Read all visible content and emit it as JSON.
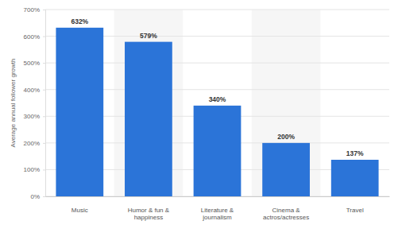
{
  "chart_data": {
    "type": "bar",
    "categories": [
      "Music",
      "Humor & fun & happiness",
      "Literature & journalism",
      "Cinema & actros/actresses",
      "Travel"
    ],
    "values": [
      632,
      579,
      340,
      200,
      137
    ],
    "value_labels": [
      "632%",
      "579%",
      "340%",
      "200%",
      "137%"
    ],
    "color": "#2b74d8",
    "ylabel": "Average annual follower growth",
    "ylim": [
      0,
      700
    ],
    "yticks": [
      {
        "value": 0,
        "label": "0%"
      },
      {
        "value": 100,
        "label": "100%"
      },
      {
        "value": 200,
        "label": "200%"
      },
      {
        "value": 300,
        "label": "300%"
      },
      {
        "value": 400,
        "label": "400%"
      },
      {
        "value": 500,
        "label": "500%"
      },
      {
        "value": 600,
        "label": "600%"
      },
      {
        "value": 700,
        "label": "700%"
      }
    ],
    "grid": true,
    "data_labels": true
  }
}
